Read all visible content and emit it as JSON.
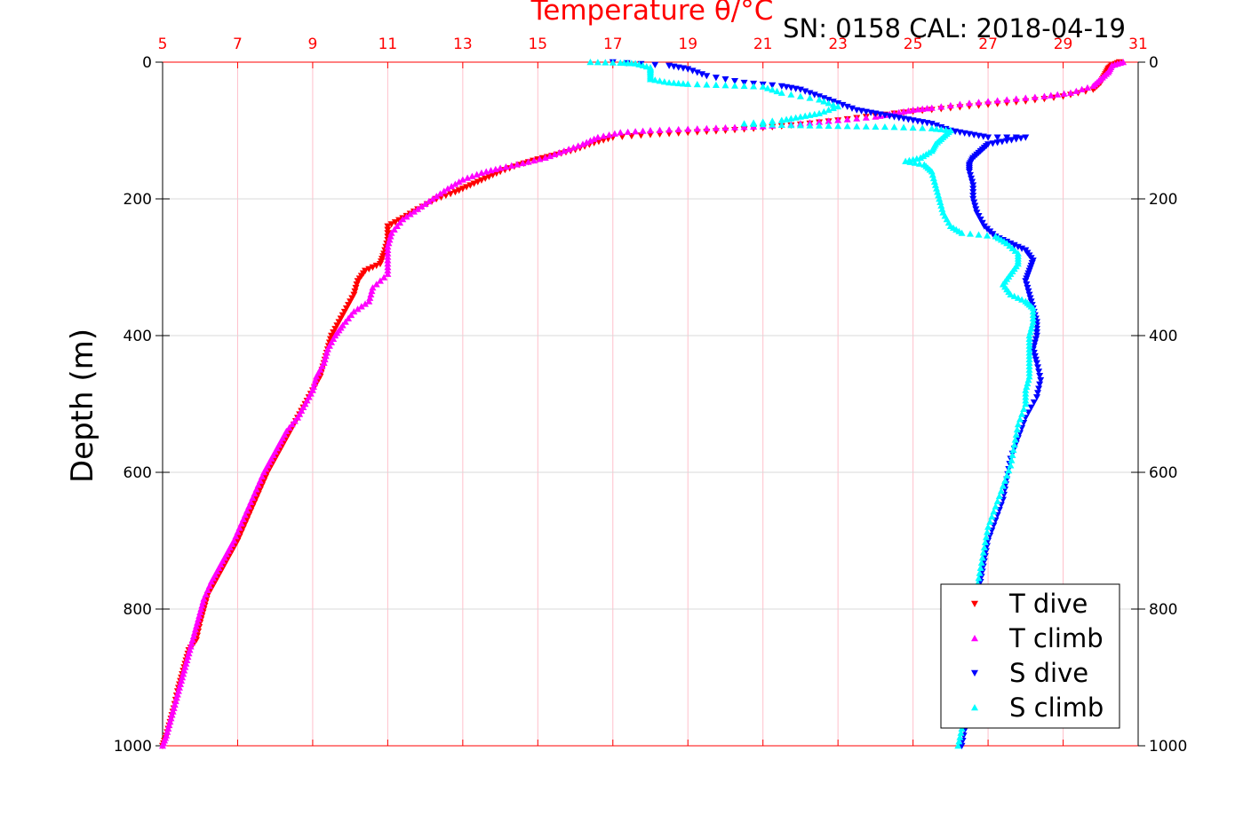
{
  "chart_data": {
    "type": "scatter",
    "title_top": "Temperature θ/°C",
    "subtitle": "SN: 0158  CAL: 2018-04-19",
    "ylabel": "Depth (m)",
    "xlim": [
      5,
      31
    ],
    "ylim": [
      0,
      1000
    ],
    "y_reversed": true,
    "x_ticks": [
      "5",
      "7",
      "9",
      "11",
      "13",
      "15",
      "17",
      "19",
      "21",
      "23",
      "25",
      "27",
      "29",
      "31"
    ],
    "y_ticks": [
      "0",
      "200",
      "400",
      "600",
      "800",
      "1000"
    ],
    "grid": true,
    "legend_position": "bottom-right",
    "colors": {
      "top_axis": "#ff0000",
      "grid": "#d9d9d9",
      "grid_x": "#ffc0cb"
    },
    "series": [
      {
        "name": "T dive",
        "color": "#ff0000",
        "marker": "triangle-down",
        "points": [
          [
            30.5,
            0
          ],
          [
            30.3,
            5
          ],
          [
            30.2,
            10
          ],
          [
            30.1,
            20
          ],
          [
            30.0,
            30
          ],
          [
            29.8,
            40
          ],
          [
            29.0,
            50
          ],
          [
            28.0,
            57
          ],
          [
            27.0,
            62
          ],
          [
            26.0,
            67
          ],
          [
            25.0,
            72
          ],
          [
            24.0,
            78
          ],
          [
            23.0,
            85
          ],
          [
            22.0,
            91
          ],
          [
            21.0,
            96
          ],
          [
            20.0,
            100
          ],
          [
            19.0,
            103
          ],
          [
            18.0,
            106
          ],
          [
            17.0,
            110
          ],
          [
            16.5,
            118
          ],
          [
            16.0,
            128
          ],
          [
            15.5,
            135
          ],
          [
            15.0,
            142
          ],
          [
            14.5,
            150
          ],
          [
            14.0,
            160
          ],
          [
            13.6,
            170
          ],
          [
            13.2,
            180
          ],
          [
            12.8,
            190
          ],
          [
            12.3,
            200
          ],
          [
            11.8,
            215
          ],
          [
            11.4,
            228
          ],
          [
            11.0,
            240
          ],
          [
            11.0,
            260
          ],
          [
            10.9,
            280
          ],
          [
            10.8,
            295
          ],
          [
            10.4,
            305
          ],
          [
            10.2,
            320
          ],
          [
            10.1,
            340
          ],
          [
            9.9,
            360
          ],
          [
            9.7,
            380
          ],
          [
            9.5,
            400
          ],
          [
            9.4,
            420
          ],
          [
            9.3,
            440
          ],
          [
            9.2,
            460
          ],
          [
            9.0,
            480
          ],
          [
            8.8,
            500
          ],
          [
            8.6,
            520
          ],
          [
            8.4,
            540
          ],
          [
            8.2,
            560
          ],
          [
            8.0,
            580
          ],
          [
            7.8,
            600
          ],
          [
            7.6,
            625
          ],
          [
            7.4,
            650
          ],
          [
            7.2,
            675
          ],
          [
            7.0,
            700
          ],
          [
            6.8,
            720
          ],
          [
            6.6,
            740
          ],
          [
            6.4,
            760
          ],
          [
            6.2,
            780
          ],
          [
            6.1,
            800
          ],
          [
            6.0,
            820
          ],
          [
            5.9,
            845
          ],
          [
            5.7,
            860
          ],
          [
            5.6,
            880
          ],
          [
            5.5,
            900
          ],
          [
            5.4,
            920
          ],
          [
            5.3,
            945
          ],
          [
            5.2,
            965
          ],
          [
            5.1,
            985
          ],
          [
            5.0,
            1000
          ]
        ]
      },
      {
        "name": "T climb",
        "color": "#ff00ff",
        "marker": "triangle-up",
        "points": [
          [
            30.6,
            0
          ],
          [
            30.3,
            5
          ],
          [
            30.2,
            15
          ],
          [
            30.0,
            25
          ],
          [
            29.8,
            35
          ],
          [
            29.2,
            45
          ],
          [
            28.5,
            50
          ],
          [
            27.5,
            55
          ],
          [
            26.5,
            60
          ],
          [
            25.5,
            67
          ],
          [
            25.0,
            70
          ],
          [
            24.5,
            75
          ],
          [
            24.0,
            80
          ],
          [
            23.0,
            85
          ],
          [
            22.0,
            90
          ],
          [
            21.0,
            94
          ],
          [
            20.0,
            96
          ],
          [
            19.0,
            98
          ],
          [
            18.0,
            100
          ],
          [
            17.2,
            103
          ],
          [
            16.6,
            110
          ],
          [
            16.2,
            120
          ],
          [
            15.7,
            130
          ],
          [
            15.2,
            140
          ],
          [
            14.6,
            148
          ],
          [
            14.0,
            155
          ],
          [
            13.5,
            162
          ],
          [
            13.0,
            172
          ],
          [
            12.6,
            185
          ],
          [
            12.2,
            200
          ],
          [
            11.8,
            215
          ],
          [
            11.4,
            230
          ],
          [
            11.1,
            250
          ],
          [
            11.0,
            270
          ],
          [
            11.0,
            290
          ],
          [
            11.0,
            310
          ],
          [
            10.6,
            330
          ],
          [
            10.5,
            350
          ],
          [
            10.1,
            365
          ],
          [
            9.8,
            385
          ],
          [
            9.6,
            400
          ],
          [
            9.4,
            420
          ],
          [
            9.3,
            440
          ],
          [
            9.1,
            460
          ],
          [
            9.0,
            480
          ],
          [
            8.8,
            500
          ],
          [
            8.6,
            520
          ],
          [
            8.3,
            540
          ],
          [
            8.1,
            560
          ],
          [
            7.9,
            580
          ],
          [
            7.7,
            600
          ],
          [
            7.5,
            625
          ],
          [
            7.3,
            650
          ],
          [
            7.1,
            675
          ],
          [
            6.9,
            700
          ],
          [
            6.7,
            720
          ],
          [
            6.5,
            740
          ],
          [
            6.3,
            760
          ],
          [
            6.1,
            785
          ],
          [
            6.0,
            805
          ],
          [
            5.9,
            825
          ],
          [
            5.8,
            845
          ],
          [
            5.7,
            865
          ],
          [
            5.6,
            885
          ],
          [
            5.5,
            905
          ],
          [
            5.4,
            925
          ],
          [
            5.3,
            945
          ],
          [
            5.2,
            965
          ],
          [
            5.1,
            985
          ],
          [
            5.0,
            1000
          ]
        ]
      },
      {
        "name": "S dive",
        "color": "#0000ff",
        "marker": "triangle-down",
        "points": [
          [
            17.0,
            0
          ],
          [
            18.5,
            5
          ],
          [
            19.0,
            10
          ],
          [
            19.5,
            20
          ],
          [
            20.5,
            30
          ],
          [
            21.5,
            35
          ],
          [
            22.0,
            40
          ],
          [
            22.5,
            50
          ],
          [
            23.0,
            60
          ],
          [
            23.5,
            70
          ],
          [
            24.0,
            75
          ],
          [
            24.5,
            80
          ],
          [
            25.0,
            85
          ],
          [
            25.5,
            90
          ],
          [
            26.0,
            100
          ],
          [
            26.5,
            105
          ],
          [
            27.0,
            110
          ],
          [
            28.0,
            110
          ],
          [
            27.5,
            115
          ],
          [
            27.0,
            120
          ],
          [
            26.8,
            130
          ],
          [
            26.6,
            140
          ],
          [
            26.5,
            150
          ],
          [
            26.5,
            160
          ],
          [
            26.6,
            180
          ],
          [
            26.6,
            200
          ],
          [
            26.7,
            220
          ],
          [
            26.9,
            240
          ],
          [
            27.2,
            255
          ],
          [
            27.6,
            265
          ],
          [
            28.0,
            275
          ],
          [
            28.2,
            290
          ],
          [
            28.1,
            305
          ],
          [
            28.0,
            320
          ],
          [
            28.1,
            340
          ],
          [
            28.2,
            360
          ],
          [
            28.3,
            380
          ],
          [
            28.3,
            400
          ],
          [
            28.2,
            420
          ],
          [
            28.3,
            440
          ],
          [
            28.4,
            465
          ],
          [
            28.3,
            490
          ],
          [
            28.0,
            520
          ],
          [
            27.8,
            550
          ],
          [
            27.6,
            580
          ],
          [
            27.5,
            610
          ],
          [
            27.4,
            640
          ],
          [
            27.2,
            670
          ],
          [
            27.0,
            700
          ],
          [
            26.9,
            730
          ],
          [
            26.8,
            760
          ],
          [
            26.7,
            790
          ],
          [
            26.6,
            820
          ],
          [
            26.5,
            850
          ],
          [
            26.5,
            880
          ],
          [
            26.5,
            910
          ],
          [
            26.4,
            940
          ],
          [
            26.4,
            970
          ],
          [
            26.3,
            1000
          ]
        ]
      },
      {
        "name": "S climb",
        "color": "#00ffff",
        "marker": "triangle-up",
        "points": [
          [
            16.4,
            0
          ],
          [
            17.2,
            1
          ],
          [
            17.6,
            2
          ],
          [
            18.0,
            8
          ],
          [
            18.0,
            15
          ],
          [
            18.0,
            25
          ],
          [
            18.5,
            30
          ],
          [
            19.0,
            32
          ],
          [
            20.0,
            34
          ],
          [
            21.0,
            36
          ],
          [
            21.5,
            45
          ],
          [
            22.5,
            55
          ],
          [
            23.0,
            65
          ],
          [
            22.5,
            75
          ],
          [
            22.0,
            80
          ],
          [
            21.5,
            85
          ],
          [
            20.5,
            90
          ],
          [
            21.5,
            92
          ],
          [
            22.5,
            93
          ],
          [
            23.5,
            94
          ],
          [
            24.5,
            95
          ],
          [
            25.5,
            97
          ],
          [
            26.0,
            100
          ],
          [
            25.8,
            110
          ],
          [
            25.6,
            120
          ],
          [
            25.5,
            130
          ],
          [
            25.2,
            140
          ],
          [
            24.8,
            145
          ],
          [
            25.3,
            150
          ],
          [
            25.5,
            160
          ],
          [
            25.6,
            180
          ],
          [
            25.7,
            200
          ],
          [
            25.8,
            220
          ],
          [
            26.0,
            240
          ],
          [
            26.3,
            250
          ],
          [
            27.2,
            255
          ],
          [
            27.5,
            265
          ],
          [
            27.8,
            280
          ],
          [
            27.8,
            295
          ],
          [
            27.6,
            310
          ],
          [
            27.4,
            325
          ],
          [
            27.6,
            340
          ],
          [
            28.0,
            350
          ],
          [
            28.2,
            360
          ],
          [
            28.2,
            380
          ],
          [
            28.1,
            400
          ],
          [
            28.1,
            420
          ],
          [
            28.1,
            440
          ],
          [
            28.1,
            460
          ],
          [
            28.0,
            480
          ],
          [
            28.0,
            500
          ],
          [
            27.8,
            530
          ],
          [
            27.7,
            560
          ],
          [
            27.6,
            590
          ],
          [
            27.4,
            620
          ],
          [
            27.2,
            650
          ],
          [
            27.0,
            680
          ],
          [
            26.9,
            710
          ],
          [
            26.8,
            740
          ],
          [
            26.7,
            770
          ],
          [
            26.6,
            800
          ],
          [
            26.5,
            830
          ],
          [
            26.5,
            860
          ],
          [
            26.4,
            890
          ],
          [
            26.4,
            920
          ],
          [
            26.3,
            950
          ],
          [
            26.3,
            975
          ],
          [
            26.2,
            1000
          ]
        ]
      }
    ]
  }
}
